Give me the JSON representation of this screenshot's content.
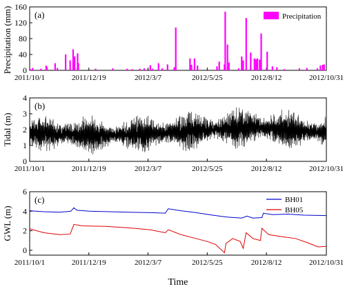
{
  "figure": {
    "x_label": "Time",
    "x_ticks": [
      "2011/10/1",
      "2011/12/19",
      "2012/3/7",
      "2012/5/25",
      "2012/8/12",
      "2012/10/31"
    ]
  },
  "chart_data": [
    {
      "type": "bar",
      "panel_label": "(a)",
      "ylabel": "Precipitation (mm)",
      "ylim": [
        0,
        160
      ],
      "y_ticks": [
        0,
        40,
        80,
        120,
        160
      ],
      "x_range": [
        "2011-10-01",
        "2012-10-31"
      ],
      "legend": {
        "position": "top-right",
        "entries": [
          "Precipitation"
        ]
      },
      "series": [
        {
          "name": "Precipitation",
          "color": "#ff00ff",
          "points": [
            [
              "2011-10-02",
              3
            ],
            [
              "2011-10-05",
              6
            ],
            [
              "2011-10-16",
              4
            ],
            [
              "2011-10-23",
              12
            ],
            [
              "2011-10-24",
              8
            ],
            [
              "2011-11-04",
              18
            ],
            [
              "2011-11-07",
              6
            ],
            [
              "2011-11-18",
              40
            ],
            [
              "2011-11-24",
              25
            ],
            [
              "2011-11-28",
              53
            ],
            [
              "2011-11-30",
              35
            ],
            [
              "2011-12-04",
              43
            ],
            [
              "2011-12-05",
              18
            ],
            [
              "2011-12-28",
              4
            ],
            [
              "2012-01-20",
              5
            ],
            [
              "2012-02-08",
              4
            ],
            [
              "2012-02-15",
              3
            ],
            [
              "2012-02-25",
              4
            ],
            [
              "2012-03-02",
              5
            ],
            [
              "2012-03-10",
              13
            ],
            [
              "2012-03-13",
              4
            ],
            [
              "2012-03-21",
              18
            ],
            [
              "2012-03-26",
              5
            ],
            [
              "2012-04-02",
              15
            ],
            [
              "2012-04-11",
              8
            ],
            [
              "2012-04-13",
              108
            ],
            [
              "2012-05-02",
              30
            ],
            [
              "2012-05-04",
              14
            ],
            [
              "2012-05-08",
              30
            ],
            [
              "2012-05-12",
              12
            ],
            [
              "2012-06-07",
              10
            ],
            [
              "2012-06-10",
              22
            ],
            [
              "2012-06-17",
              15
            ],
            [
              "2012-06-18",
              148
            ],
            [
              "2012-06-21",
              65
            ],
            [
              "2012-06-23",
              20
            ],
            [
              "2012-07-06",
              5
            ],
            [
              "2012-07-10",
              35
            ],
            [
              "2012-07-12",
              25
            ],
            [
              "2012-07-16",
              132
            ],
            [
              "2012-07-22",
              45
            ],
            [
              "2012-07-27",
              30
            ],
            [
              "2012-07-29",
              28
            ],
            [
              "2012-07-31",
              30
            ],
            [
              "2012-08-03",
              27
            ],
            [
              "2012-08-05",
              93
            ],
            [
              "2012-08-13",
              47
            ],
            [
              "2012-08-20",
              10
            ],
            [
              "2012-08-26",
              8
            ],
            [
              "2012-09-05",
              3
            ],
            [
              "2012-09-25",
              5
            ],
            [
              "2012-10-05",
              6
            ],
            [
              "2012-10-19",
              5
            ],
            [
              "2012-10-23",
              12
            ],
            [
              "2012-10-26",
              14
            ],
            [
              "2012-10-28",
              15
            ]
          ]
        }
      ]
    },
    {
      "type": "line",
      "panel_label": "(b)",
      "ylabel": "Tidal (m)",
      "ylim": [
        0,
        4
      ],
      "y_ticks": [
        0,
        1,
        2,
        3,
        4
      ],
      "x_range": [
        "2011-10-01",
        "2012-10-31"
      ],
      "series": [
        {
          "name": "Tidal",
          "color": "#000000",
          "envelope": [
            {
              "date": "2011-10-01",
              "mean": 1.8,
              "low": 0.75,
              "high": 2.95
            },
            {
              "date": "2011-11-01",
              "mean": 1.75,
              "low": 0.6,
              "high": 3.05
            },
            {
              "date": "2011-12-01",
              "mean": 1.7,
              "low": 0.5,
              "high": 3.1
            },
            {
              "date": "2012-01-01",
              "mean": 1.65,
              "low": 0.55,
              "high": 3.0
            },
            {
              "date": "2012-02-01",
              "mean": 1.7,
              "low": 0.6,
              "high": 3.0
            },
            {
              "date": "2012-03-01",
              "mean": 1.75,
              "low": 0.55,
              "high": 3.05
            },
            {
              "date": "2012-04-01",
              "mean": 1.8,
              "low": 0.6,
              "high": 3.1
            },
            {
              "date": "2012-05-01",
              "mean": 1.9,
              "low": 0.7,
              "high": 3.2
            },
            {
              "date": "2012-06-01",
              "mean": 2.0,
              "low": 0.8,
              "high": 3.3
            },
            {
              "date": "2012-07-01",
              "mean": 2.1,
              "low": 0.8,
              "high": 3.4
            },
            {
              "date": "2012-08-01",
              "mean": 2.15,
              "low": 0.9,
              "high": 3.6
            },
            {
              "date": "2012-09-01",
              "mean": 2.05,
              "low": 0.8,
              "high": 3.4
            },
            {
              "date": "2012-10-01",
              "mean": 1.9,
              "low": 0.7,
              "high": 3.2
            },
            {
              "date": "2012-10-31",
              "mean": 1.85,
              "low": 0.6,
              "high": 3.1
            }
          ]
        }
      ]
    },
    {
      "type": "line",
      "panel_label": "(c)",
      "ylabel": "GWL (m)",
      "ylim": [
        -0.5,
        6
      ],
      "y_ticks": [
        0,
        2,
        4,
        6
      ],
      "x_range": [
        "2011-10-01",
        "2012-10-31"
      ],
      "legend": {
        "position": "top-right",
        "entries": [
          "BH01",
          "BH05"
        ]
      },
      "series": [
        {
          "name": "BH01",
          "color": "#0000cc",
          "points": [
            [
              "2011-10-01",
              4.05
            ],
            [
              "2011-10-20",
              3.95
            ],
            [
              "2011-11-10",
              3.9
            ],
            [
              "2011-11-25",
              4.0
            ],
            [
              "2011-11-29",
              4.35
            ],
            [
              "2011-12-03",
              4.1
            ],
            [
              "2011-12-20",
              4.0
            ],
            [
              "2012-01-15",
              3.95
            ],
            [
              "2012-02-10",
              3.9
            ],
            [
              "2012-03-10",
              3.85
            ],
            [
              "2012-03-30",
              3.8
            ],
            [
              "2012-04-03",
              4.25
            ],
            [
              "2012-04-20",
              4.05
            ],
            [
              "2012-05-10",
              3.85
            ],
            [
              "2012-06-01",
              3.6
            ],
            [
              "2012-06-20",
              3.4
            ],
            [
              "2012-07-10",
              3.3
            ],
            [
              "2012-07-17",
              3.5
            ],
            [
              "2012-07-25",
              3.3
            ],
            [
              "2012-08-06",
              3.35
            ],
            [
              "2012-08-08",
              3.8
            ],
            [
              "2012-08-20",
              3.65
            ],
            [
              "2012-09-10",
              3.7
            ],
            [
              "2012-10-01",
              3.6
            ],
            [
              "2012-10-31",
              3.55
            ]
          ]
        },
        {
          "name": "BH05",
          "color": "#dd0000",
          "points": [
            [
              "2011-10-01",
              2.2
            ],
            [
              "2011-10-20",
              1.8
            ],
            [
              "2011-11-10",
              1.6
            ],
            [
              "2011-11-24",
              1.65
            ],
            [
              "2011-11-29",
              2.65
            ],
            [
              "2011-12-10",
              2.5
            ],
            [
              "2012-01-10",
              2.45
            ],
            [
              "2012-02-10",
              2.3
            ],
            [
              "2012-03-10",
              2.1
            ],
            [
              "2012-03-30",
              1.8
            ],
            [
              "2012-04-03",
              2.1
            ],
            [
              "2012-04-20",
              1.6
            ],
            [
              "2012-05-10",
              1.2
            ],
            [
              "2012-05-25",
              0.9
            ],
            [
              "2012-06-05",
              0.6
            ],
            [
              "2012-06-17",
              -0.25
            ],
            [
              "2012-06-19",
              0.7
            ],
            [
              "2012-06-28",
              1.2
            ],
            [
              "2012-07-08",
              0.9
            ],
            [
              "2012-07-12",
              0.2
            ],
            [
              "2012-07-16",
              1.8
            ],
            [
              "2012-07-25",
              1.2
            ],
            [
              "2012-08-04",
              1.0
            ],
            [
              "2012-08-06",
              2.25
            ],
            [
              "2012-08-15",
              1.6
            ],
            [
              "2012-09-01",
              1.4
            ],
            [
              "2012-09-20",
              1.2
            ],
            [
              "2012-10-05",
              0.8
            ],
            [
              "2012-10-20",
              0.35
            ],
            [
              "2012-10-31",
              0.4
            ]
          ]
        }
      ]
    }
  ]
}
